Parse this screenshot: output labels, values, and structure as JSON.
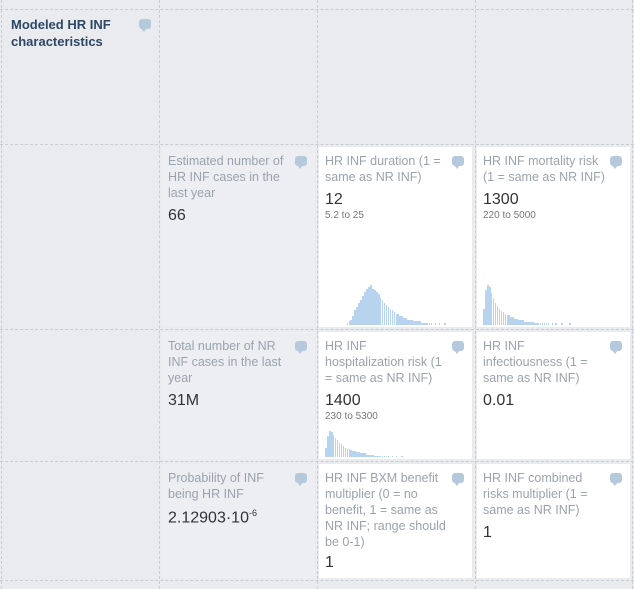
{
  "header": {
    "title": "Modeled HR INF characteristics"
  },
  "cards": [
    {
      "id": "est-hr-cases",
      "label": "Estimated number of HR INF cases in the last year",
      "value": "66",
      "range": "",
      "hist": []
    },
    {
      "id": "hr-duration",
      "label": "HR INF duration (1 = same as NR INF)",
      "value": "12",
      "range": "5.2 to 25",
      "hist": [
        0,
        0,
        0,
        0,
        0,
        0,
        0,
        0,
        0,
        0,
        0,
        1,
        2,
        3,
        5,
        8,
        10,
        12,
        14,
        16,
        18,
        20,
        21,
        22,
        20,
        19,
        18,
        17,
        15,
        14,
        12,
        11,
        10,
        9,
        8,
        7,
        6,
        6,
        5,
        5,
        4,
        4,
        3,
        3,
        3,
        2,
        2,
        2,
        2,
        1,
        1,
        1,
        1,
        1,
        1,
        0,
        1,
        0,
        1,
        0,
        0,
        1,
        0,
        0,
        0,
        0,
        0,
        0,
        0,
        0,
        0,
        0
      ]
    },
    {
      "id": "hr-mortality",
      "label": "HR INF mortality risk (1 = same as NR INF)",
      "value": "1300",
      "range": "220 to 5000",
      "hist": [
        10,
        22,
        25,
        24,
        20,
        17,
        14,
        12,
        10,
        9,
        8,
        7,
        6,
        6,
        5,
        5,
        4,
        4,
        3,
        3,
        3,
        2,
        2,
        2,
        2,
        2,
        1,
        1,
        1,
        1,
        1,
        1,
        1,
        1,
        0,
        1,
        0,
        1,
        0,
        0,
        1,
        0,
        0,
        0,
        1,
        0,
        0,
        0,
        0,
        0,
        0,
        0,
        0,
        0,
        0,
        0,
        0,
        0,
        0,
        0,
        0,
        0,
        0,
        0,
        0,
        0,
        0,
        0,
        0,
        0,
        0,
        0
      ]
    },
    {
      "id": "total-nr-cases",
      "label": "Total number of NR INF cases in the last year",
      "value": "31M",
      "range": "",
      "hist": []
    },
    {
      "id": "hr-hospitalization",
      "label": "HR INF hospitalization risk (1 = same as NR INF)",
      "value": "1400",
      "range": "230 to 5300",
      "hist": [
        8,
        18,
        22,
        21,
        19,
        16,
        14,
        12,
        11,
        9,
        8,
        7,
        7,
        6,
        5,
        5,
        4,
        4,
        3,
        3,
        3,
        2,
        2,
        2,
        2,
        1,
        1,
        1,
        1,
        1,
        1,
        1,
        1,
        0,
        1,
        0,
        1,
        0,
        0,
        1,
        0,
        0,
        0,
        0,
        0,
        0,
        0,
        0,
        0,
        0,
        0,
        0,
        0,
        0,
        0,
        0,
        0,
        0,
        0,
        0,
        0,
        0,
        0,
        0,
        0,
        0,
        0,
        0,
        0,
        0,
        0,
        0
      ]
    },
    {
      "id": "hr-infectiousness",
      "label": "HR INF infectiousness (1 = same as NR INF)",
      "value": "0.01",
      "range": "",
      "hist": []
    },
    {
      "id": "prob-hr",
      "label": "Probability of INF being HR INF",
      "value_base": "2.12903·10",
      "value_exp": "-6",
      "range": "",
      "hist": []
    },
    {
      "id": "hr-bxm",
      "label": "HR INF BXM benefit multiplier (0 = no benefit, 1 = same as NR INF; range should be 0-1)",
      "value": "1",
      "range": "",
      "hist": []
    },
    {
      "id": "hr-combined",
      "label": "HR INF combined risks multiplier (1 = same as NR INF)",
      "value": "1",
      "range": "",
      "hist": []
    }
  ]
}
